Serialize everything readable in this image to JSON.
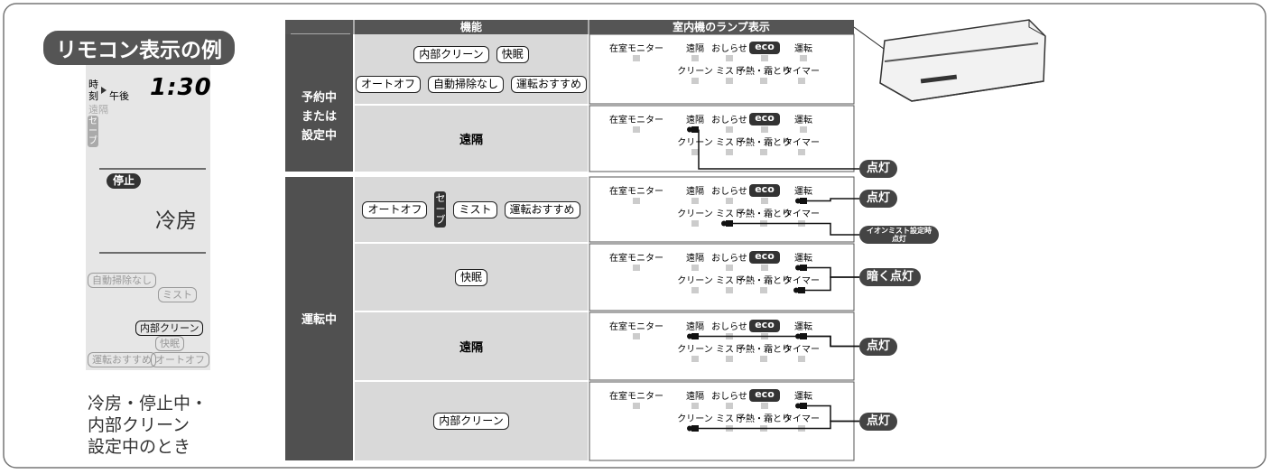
{
  "remote": {
    "title": "リモコン表示の例",
    "clock_label": [
      "時",
      "刻"
    ],
    "ampm": "午後",
    "time": "1:30",
    "remote_label": "遠隔",
    "save": "セーブ",
    "stop": "停止",
    "mode": "冷房",
    "buttons": [
      "自動掃除なし",
      "ミスト",
      "内部クリーン",
      "快眠",
      "運転おすすめ",
      "オートオフ"
    ],
    "caption": [
      "冷房・停止中・",
      "内部クリーン",
      "設定中のとき"
    ]
  },
  "table": {
    "headers": [
      "機能",
      "室内機のランプ表示"
    ],
    "groups": [
      [
        "予約中",
        "または",
        "設定中"
      ],
      [
        "運転中"
      ]
    ],
    "rows": [
      {
        "functions": [
          [
            "内部クリーン",
            "快眠"
          ],
          [
            "オートオフ",
            "自動掃除なし",
            "運転おすすめ"
          ]
        ],
        "boxed": true,
        "callouts": []
      },
      {
        "functions": [
          [
            "遠隔"
          ]
        ],
        "boxed": false,
        "callouts": [
          [
            "点灯"
          ]
        ]
      },
      {
        "functions": [
          [
            "オートオフ",
            "セーブ",
            "ミスト",
            "運転おすすめ"
          ]
        ],
        "boxed": true,
        "callouts": [
          [
            "点灯"
          ],
          [
            "イオンミスト設定時",
            "点灯"
          ]
        ]
      },
      {
        "functions": [
          [
            "快眠"
          ]
        ],
        "boxed": true,
        "callouts": [
          [
            "暗く点灯"
          ]
        ]
      },
      {
        "functions": [
          [
            "遠隔"
          ]
        ],
        "boxed": false,
        "callouts": [
          [
            "点灯"
          ]
        ]
      },
      {
        "functions": [
          [
            "内部クリーン"
          ]
        ],
        "boxed": true,
        "callouts": [
          [
            "点灯"
          ]
        ]
      }
    ],
    "lamps": [
      "在室モニター",
      "遠隔",
      "おしらせ",
      "eco",
      "運転",
      "クリーン",
      "ミスト",
      "予熱・霜とり",
      "タイマー"
    ]
  }
}
